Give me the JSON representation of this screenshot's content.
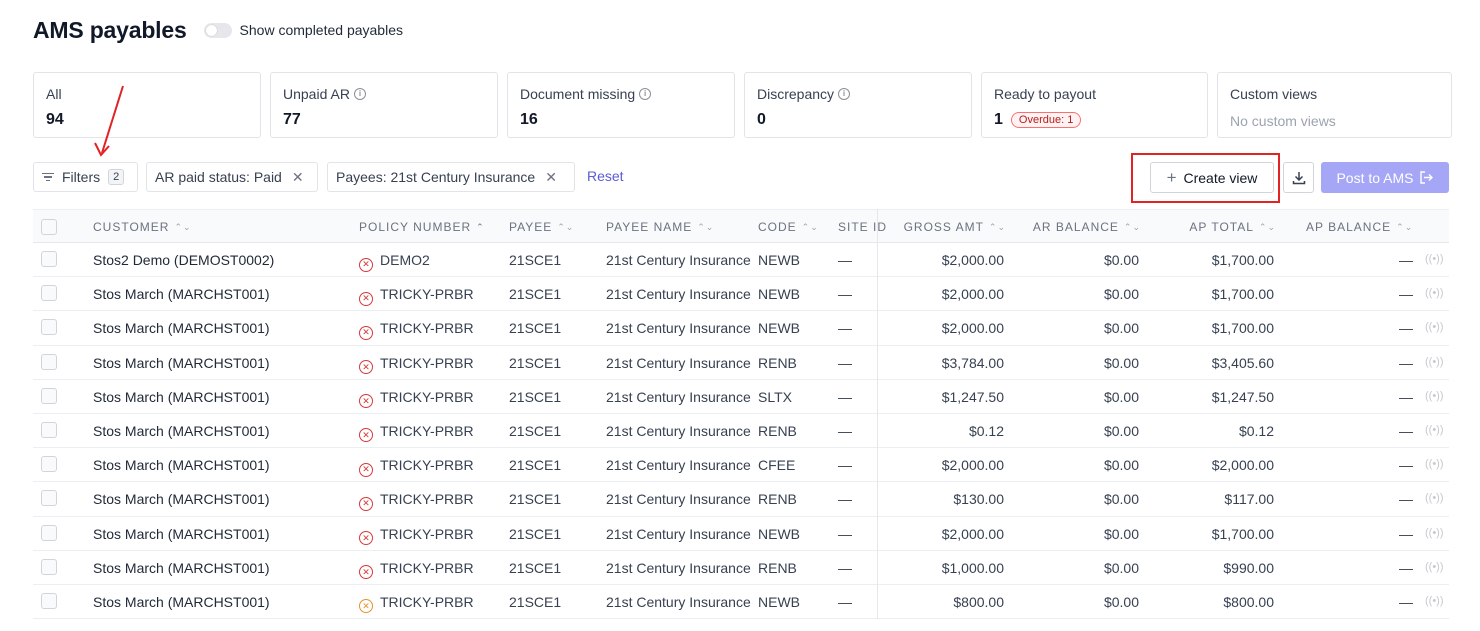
{
  "header": {
    "title": "AMS payables",
    "toggle_label": "Show completed payables"
  },
  "cards": [
    {
      "label": "All",
      "value": "94"
    },
    {
      "label": "Unpaid AR",
      "value": "77"
    },
    {
      "label": "Document missing",
      "value": "16"
    },
    {
      "label": "Discrepancy",
      "value": "0"
    },
    {
      "label": "Ready to payout",
      "value": "1",
      "badge": "Overdue: 1"
    },
    {
      "label": "Custom views",
      "value": "No custom views"
    }
  ],
  "toolbar": {
    "filters_label": "Filters",
    "filters_count": "2",
    "chips": [
      "AR paid status: Paid",
      "Payees: 21st Century Insurance"
    ],
    "reset_label": "Reset",
    "create_view_label": "Create view",
    "post_label": "Post to AMS"
  },
  "table": {
    "columns": [
      "CUSTOMER",
      "POLICY NUMBER",
      "PAYEE",
      "PAYEE NAME",
      "CODE",
      "SITE ID",
      "GROSS AMT",
      "AR BALANCE",
      "AP TOTAL",
      "AP BALANCE"
    ],
    "rows": [
      {
        "customer": "Stos2 Demo (DEMOST0002)",
        "policy": "DEMO2",
        "status": "error",
        "payee": "21SCE1",
        "payee_name": "21st Century Insurance",
        "code": "NEWB",
        "site": "—",
        "gross": "$2,000.00",
        "ar_balance": "$0.00",
        "ap_total": "$1,700.00",
        "ap_balance": "—"
      },
      {
        "customer": "Stos March (MARCHST001)",
        "policy": "TRICKY-PRBR",
        "status": "error",
        "payee": "21SCE1",
        "payee_name": "21st Century Insurance",
        "code": "NEWB",
        "site": "—",
        "gross": "$2,000.00",
        "ar_balance": "$0.00",
        "ap_total": "$1,700.00",
        "ap_balance": "—"
      },
      {
        "customer": "Stos March (MARCHST001)",
        "policy": "TRICKY-PRBR",
        "status": "error",
        "payee": "21SCE1",
        "payee_name": "21st Century Insurance",
        "code": "NEWB",
        "site": "—",
        "gross": "$2,000.00",
        "ar_balance": "$0.00",
        "ap_total": "$1,700.00",
        "ap_balance": "—"
      },
      {
        "customer": "Stos March (MARCHST001)",
        "policy": "TRICKY-PRBR",
        "status": "error",
        "payee": "21SCE1",
        "payee_name": "21st Century Insurance",
        "code": "RENB",
        "site": "—",
        "gross": "$3,784.00",
        "ar_balance": "$0.00",
        "ap_total": "$3,405.60",
        "ap_balance": "—"
      },
      {
        "customer": "Stos March (MARCHST001)",
        "policy": "TRICKY-PRBR",
        "status": "error",
        "payee": "21SCE1",
        "payee_name": "21st Century Insurance",
        "code": "SLTX",
        "site": "—",
        "gross": "$1,247.50",
        "ar_balance": "$0.00",
        "ap_total": "$1,247.50",
        "ap_balance": "—"
      },
      {
        "customer": "Stos March (MARCHST001)",
        "policy": "TRICKY-PRBR",
        "status": "error",
        "payee": "21SCE1",
        "payee_name": "21st Century Insurance",
        "code": "RENB",
        "site": "—",
        "gross": "$0.12",
        "ar_balance": "$0.00",
        "ap_total": "$0.12",
        "ap_balance": "—"
      },
      {
        "customer": "Stos March (MARCHST001)",
        "policy": "TRICKY-PRBR",
        "status": "error",
        "payee": "21SCE1",
        "payee_name": "21st Century Insurance",
        "code": "CFEE",
        "site": "—",
        "gross": "$2,000.00",
        "ar_balance": "$0.00",
        "ap_total": "$2,000.00",
        "ap_balance": "—"
      },
      {
        "customer": "Stos March (MARCHST001)",
        "policy": "TRICKY-PRBR",
        "status": "error",
        "payee": "21SCE1",
        "payee_name": "21st Century Insurance",
        "code": "RENB",
        "site": "—",
        "gross": "$130.00",
        "ar_balance": "$0.00",
        "ap_total": "$117.00",
        "ap_balance": "—"
      },
      {
        "customer": "Stos March (MARCHST001)",
        "policy": "TRICKY-PRBR",
        "status": "error",
        "payee": "21SCE1",
        "payee_name": "21st Century Insurance",
        "code": "NEWB",
        "site": "—",
        "gross": "$2,000.00",
        "ar_balance": "$0.00",
        "ap_total": "$1,700.00",
        "ap_balance": "—"
      },
      {
        "customer": "Stos March (MARCHST001)",
        "policy": "TRICKY-PRBR",
        "status": "error",
        "payee": "21SCE1",
        "payee_name": "21st Century Insurance",
        "code": "RENB",
        "site": "—",
        "gross": "$1,000.00",
        "ar_balance": "$0.00",
        "ap_total": "$990.00",
        "ap_balance": "—"
      },
      {
        "customer": "Stos March (MARCHST001)",
        "policy": "TRICKY-PRBR",
        "status": "warning",
        "payee": "21SCE1",
        "payee_name": "21st Century Insurance",
        "code": "NEWB",
        "site": "—",
        "gross": "$800.00",
        "ar_balance": "$0.00",
        "ap_total": "$800.00",
        "ap_balance": "—"
      }
    ]
  },
  "colors": {
    "accent": "#5b5bd6",
    "post_button": "#a5a6f6",
    "error": "#d63a3a",
    "warning": "#e8912d",
    "highlight": "#e02424"
  },
  "icons": {
    "filter": "filter-lines-icon",
    "info": "info-circle-icon",
    "download": "download-icon",
    "post": "arrow-right-bracket-icon",
    "row_status_error": "x-circle-icon",
    "row_status_warning": "x-circle-icon",
    "row_action": "broadcast-icon"
  }
}
